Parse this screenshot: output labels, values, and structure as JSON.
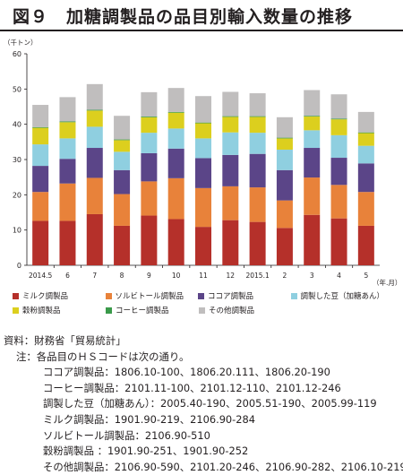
{
  "title": "図９　加糖調製品の品目別輸入数量の推移",
  "chart_data": {
    "type": "bar",
    "stacked": true,
    "unit_label": "（千トン）",
    "x_unit_label": "（年.月）",
    "ylim": [
      0,
      60
    ],
    "yticks": [
      "0",
      "10",
      "20",
      "30",
      "40",
      "50",
      "60"
    ],
    "categories": [
      "2014.5",
      "6",
      "7",
      "8",
      "9",
      "10",
      "11",
      "12",
      "2015.1",
      "2",
      "3",
      "4",
      "5"
    ],
    "grid": false,
    "legend_position": "bottom",
    "series": [
      {
        "name": "ミルク調製品",
        "color": "#b5302a",
        "values": [
          12.6,
          12.6,
          14.5,
          11.2,
          14.1,
          13.1,
          10.9,
          12.8,
          12.3,
          10.6,
          14.3,
          13.3,
          11.2
        ]
      },
      {
        "name": "ソルビトール調製品",
        "color": "#e8823a",
        "values": [
          8.2,
          10.6,
          10.3,
          9.0,
          9.7,
          11.6,
          11.0,
          9.6,
          9.8,
          7.8,
          10.6,
          9.5,
          9.6
        ]
      },
      {
        "name": "ココア調製品",
        "color": "#5b4588",
        "values": [
          7.4,
          7.0,
          8.5,
          6.8,
          8.0,
          8.4,
          8.5,
          8.9,
          9.5,
          8.6,
          8.4,
          7.7,
          8.1
        ]
      },
      {
        "name": "調製した豆（加糖あん）",
        "color": "#8fcfe0",
        "values": [
          6.1,
          5.8,
          6.0,
          5.2,
          5.8,
          5.7,
          5.6,
          6.4,
          6.0,
          5.8,
          5.0,
          6.4,
          5.0
        ]
      },
      {
        "name": "穀粉調製品",
        "color": "#dccf1e",
        "values": [
          4.7,
          4.6,
          4.6,
          3.3,
          4.4,
          4.5,
          4.3,
          4.4,
          4.5,
          3.2,
          3.9,
          4.5,
          3.6
        ]
      },
      {
        "name": "コーヒー調製品",
        "color": "#3a9a4a",
        "values": [
          0.2,
          0.2,
          0.2,
          0.2,
          0.2,
          0.2,
          0.2,
          0.2,
          0.2,
          0.2,
          0.2,
          0.2,
          0.2
        ]
      },
      {
        "name": "その他調製品",
        "color": "#c0bebe",
        "values": [
          6.3,
          6.9,
          7.3,
          6.7,
          6.9,
          6.8,
          7.5,
          6.9,
          6.5,
          5.8,
          7.3,
          6.9,
          5.8
        ]
      }
    ]
  },
  "source": {
    "lines": [
      "資料：財務省「貿易統計」",
      "注：各品目のＨＳコードは次の通り。",
      "ココア調製品：1806.10-100、1806.20.111、1806.20-190",
      "コーヒー調製品：2101.11-100、2101.12-110、2101.12-246",
      "調製した豆（加糖あん）：2005.40-190、2005.51-190、2005.99-119",
      "ミルク調製品：1901.90-219、2106.90-284",
      "ソルビトール調製品：2106.90-510",
      "穀粉調製品 ：1901.90-251、1901.90-252",
      "その他調製品：2106.90-590、2101.20-246、2106.90-282、2106.10-219"
    ]
  }
}
